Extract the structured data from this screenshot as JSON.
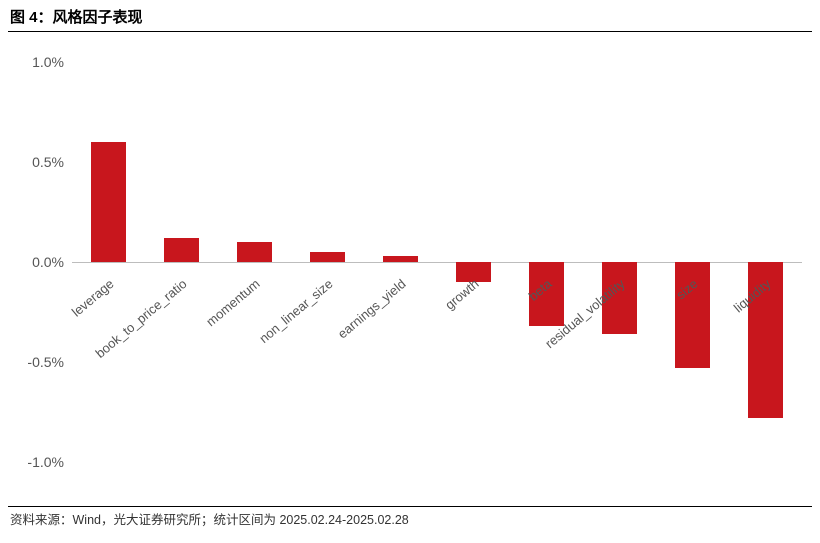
{
  "title": "图 4：风格因子表现",
  "source": "资料来源：Wind，光大证券研究所；统计区间为 2025.02.24-2025.02.28",
  "chart": {
    "type": "bar",
    "categories": [
      "leverage",
      "book_to_price_ratio",
      "momentum",
      "non_linear_size",
      "earnings_yield",
      "growth",
      "beta",
      "residual_volatility",
      "size",
      "liquidity"
    ],
    "values": [
      0.6,
      0.12,
      0.1,
      0.05,
      0.03,
      -0.1,
      -0.32,
      -0.36,
      -0.53,
      -0.78
    ],
    "bar_color": "#c8161d",
    "axis_color": "#bdbdbd",
    "tick_label_color": "#555555",
    "background_color": "#ffffff",
    "ylim": [
      -1.0,
      1.0
    ],
    "yticks": [
      1.0,
      0.5,
      0.0,
      -0.5,
      -1.0
    ],
    "ytick_labels": [
      "1.0%",
      "0.5%",
      "0.0%",
      "-0.5%",
      "-1.0%"
    ],
    "bar_width_ratio": 0.48,
    "xlabel_rotation_deg": -40,
    "title_fontsize": 15,
    "tick_fontsize": 14,
    "xlabel_fontsize": 13,
    "source_fontsize": 12.5
  }
}
